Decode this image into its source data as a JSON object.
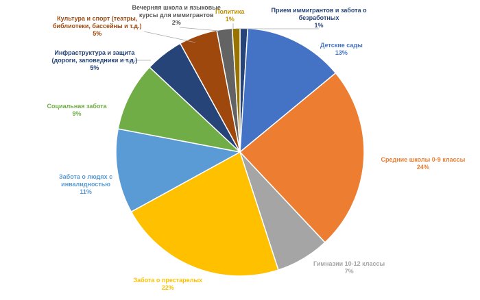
{
  "chart_data": {
    "type": "pie",
    "title": "",
    "slices": [
      {
        "label": "Прием иммигрантов и забота о безработных",
        "value": 1,
        "pct_text": "1%",
        "color": "#264478"
      },
      {
        "label": "Детские сады",
        "value": 13,
        "pct_text": "13%",
        "color": "#4472C4"
      },
      {
        "label": "Средние школы 0-9 классы",
        "value": 24,
        "pct_text": "24%",
        "color": "#ED7D31"
      },
      {
        "label": "Гимназии 10-12 классы",
        "value": 7,
        "pct_text": "7%",
        "color": "#A5A5A5"
      },
      {
        "label": "Забота о престарелых",
        "value": 22,
        "pct_text": "22%",
        "color": "#FFC000"
      },
      {
        "label": "Забота о людях с инвалидностью",
        "value": 11,
        "pct_text": "11%",
        "color": "#5B9BD5"
      },
      {
        "label": "Социальная забота",
        "value": 9,
        "pct_text": "9%",
        "color": "#70AD47"
      },
      {
        "label": "Инфраструктура и защита (дороги, заповедники и т.д.)",
        "value": 5,
        "pct_text": "5%",
        "color": "#264478"
      },
      {
        "label": "Культура и спорт (театры, библиотеки, бассейны и т.д.)",
        "value": 5,
        "pct_text": "5%",
        "color": "#9E480E"
      },
      {
        "label": "Вечерняя школа и языковые курсы для иммигрантов",
        "value": 2,
        "pct_text": "2%",
        "color": "#636363"
      },
      {
        "label": "Политика",
        "value": 1,
        "pct_text": "1%",
        "color": "#997300"
      }
    ],
    "labels": [
      {
        "lines": [
          "Прием иммигрантов и забота о",
          "безработных"
        ],
        "pct": "1%",
        "color": "#264478"
      },
      {
        "lines": [
          "Детские сады"
        ],
        "pct": "13%",
        "color": "#4472C4"
      },
      {
        "lines": [
          "Средние школы 0-9 классы"
        ],
        "pct": "24%",
        "color": "#ED7D31"
      },
      {
        "lines": [
          "Гимназии 10-12 классы"
        ],
        "pct": "7%",
        "color": "#A5A5A5"
      },
      {
        "lines": [
          "Забота о престарелых"
        ],
        "pct": "22%",
        "color": "#FFC000"
      },
      {
        "lines": [
          "Забота о людях с",
          "инвалидностью"
        ],
        "pct": "11%",
        "color": "#5B9BD5"
      },
      {
        "lines": [
          "Социальная забота"
        ],
        "pct": "9%",
        "color": "#70AD47"
      },
      {
        "lines": [
          "Инфраструктура и защита",
          "(дороги, заповедники и т.д.)"
        ],
        "pct": "5%",
        "color": "#264478"
      },
      {
        "lines": [
          "Культура и спорт (театры,",
          "библиотеки, бассейны и т.д.)"
        ],
        "pct": "5%",
        "color": "#9E480E"
      },
      {
        "lines": [
          "Вечерняя школа и языковые",
          "курсы для иммигрантов"
        ],
        "pct": "2%",
        "color": "#595959"
      },
      {
        "lines": [
          "Политика"
        ],
        "pct": "1%",
        "color": "#BF9000"
      }
    ]
  }
}
